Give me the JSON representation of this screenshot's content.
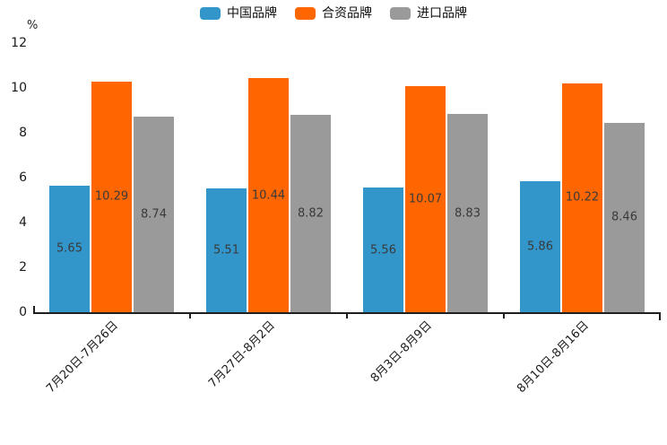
{
  "chart_data": {
    "type": "bar",
    "title": "",
    "unit_label": "%",
    "categories": [
      "7月20日-7月26日",
      "7月27日-8月2日",
      "8月3日-8月9日",
      "8月10日-8月16日"
    ],
    "series": [
      {
        "name": "中国品牌",
        "color": "#3296ca",
        "values": [
          5.65,
          5.51,
          5.56,
          5.86
        ]
      },
      {
        "name": "合资品牌",
        "color": "#ff6600",
        "values": [
          10.29,
          10.44,
          10.07,
          10.22
        ]
      },
      {
        "name": "进口品牌",
        "color": "#9a9a9a",
        "values": [
          8.74,
          8.82,
          8.83,
          8.46
        ]
      }
    ],
    "ylabel": "%",
    "ylim": [
      0,
      12
    ],
    "yticks": [
      0,
      2,
      4,
      6,
      8,
      10,
      12
    ],
    "legend_position": "top-center",
    "grid": false,
    "value_labels": "centered-in-bars",
    "axis_color": "#1f1f1f",
    "value_label_color": "#3a3a3a"
  }
}
